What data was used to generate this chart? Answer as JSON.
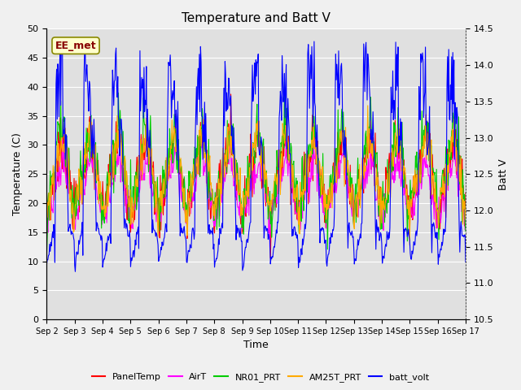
{
  "title": "Temperature and Batt V",
  "xlabel": "Time",
  "ylabel_left": "Temperature (C)",
  "ylabel_right": "Batt V",
  "annotation": "EE_met",
  "ylim_left": [
    0,
    50
  ],
  "ylim_right": [
    10.5,
    14.5
  ],
  "n_days": 15,
  "xtick_labels": [
    "Sep 2",
    "Sep 3",
    "Sep 4",
    "Sep 5",
    "Sep 6",
    "Sep 7",
    "Sep 8",
    "Sep 9",
    "Sep 10",
    "Sep 11",
    "Sep 12",
    "Sep 13",
    "Sep 14",
    "Sep 15",
    "Sep 16",
    "Sep 17"
  ],
  "background_color": "#e0e0e0",
  "fig_background": "#f0f0f0",
  "legend_entries": [
    "PanelTemp",
    "AirT",
    "NR01_PRT",
    "AM25T_PRT",
    "batt_volt"
  ],
  "legend_colors": [
    "#ff0000",
    "#ff00ff",
    "#00cc00",
    "#ffaa00",
    "#0000ff"
  ],
  "series_colors": {
    "PanelTemp": "#ff0000",
    "AirT": "#ff00ff",
    "NR01_PRT": "#00cc00",
    "AM25T_PRT": "#ffaa00",
    "batt_volt": "#0000ff"
  },
  "grid_color": "#ffffff",
  "annotation_facecolor": "#ffffcc",
  "annotation_edgecolor": "#888800",
  "annotation_textcolor": "#880000"
}
